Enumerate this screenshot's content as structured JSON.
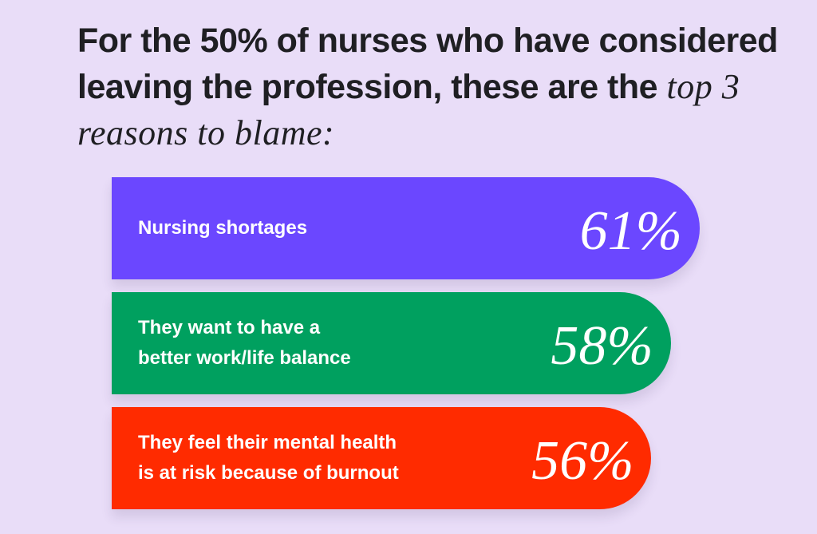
{
  "chart_data": {
    "type": "bar",
    "title": "For the 50% of nurses who have considered leaving the profession, these are the",
    "title_emphasis": "top 3 reasons to blame:",
    "categories": [
      "Nursing shortages",
      "They want to have a\nbetter work/life balance",
      "They feel their mental health\nis at risk because of burnout"
    ],
    "values": [
      61,
      58,
      56
    ],
    "value_labels": [
      "61%",
      "58%",
      "56%"
    ],
    "colors": [
      "#6b47ff",
      "#00a05f",
      "#ff2b00"
    ]
  }
}
